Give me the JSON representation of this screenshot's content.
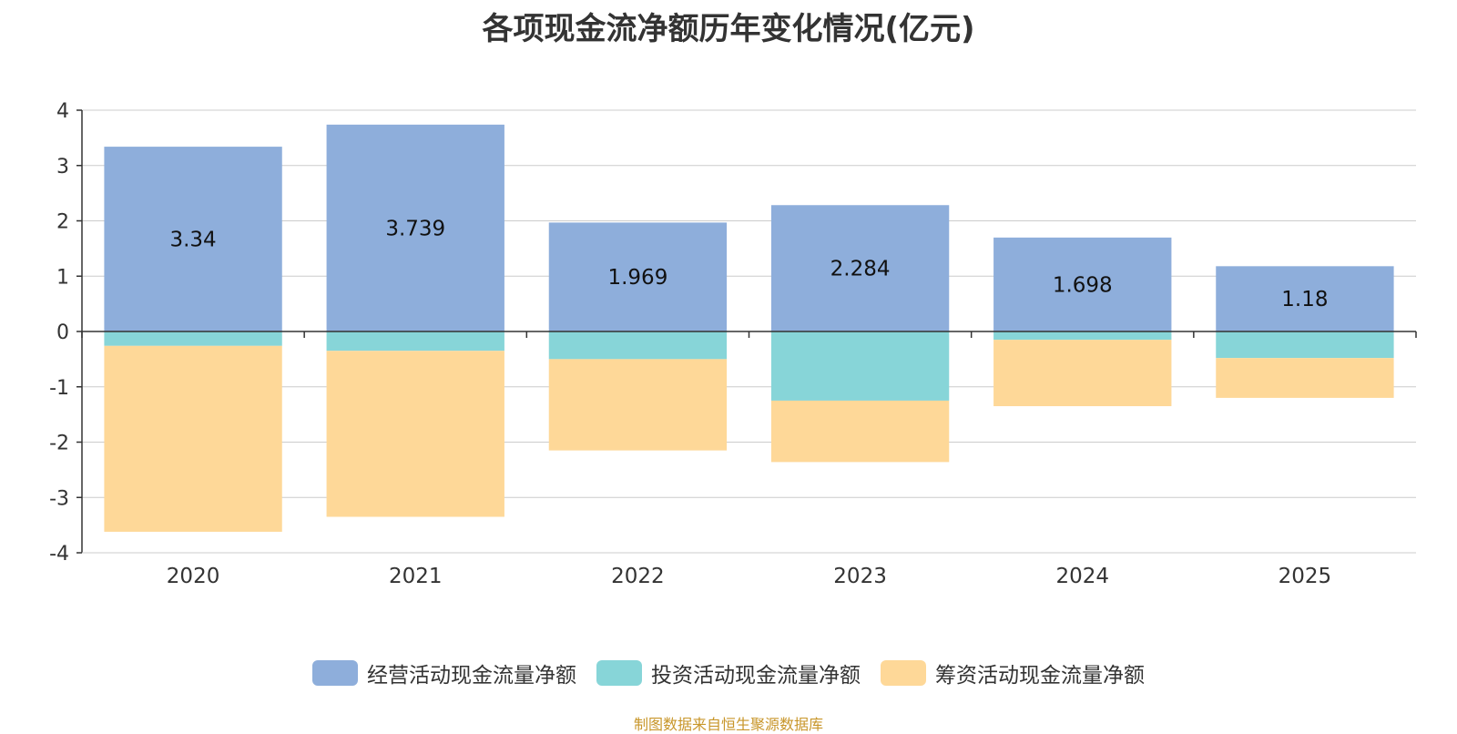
{
  "chart_data": {
    "type": "bar",
    "stacked": true,
    "title": "各项现金流净额历年变化情况(亿元)",
    "categories": [
      "2020",
      "2021",
      "2022",
      "2023",
      "2024",
      "2025"
    ],
    "series": [
      {
        "name": "经营活动现金流量净额",
        "color": "#8eaedb",
        "values": [
          3.34,
          3.739,
          1.969,
          2.284,
          1.698,
          1.18
        ],
        "show_labels": true
      },
      {
        "name": "投资活动现金流量净额",
        "color": "#87d5d8",
        "values": [
          -0.26,
          -0.35,
          -0.5,
          -1.25,
          -0.15,
          -0.48
        ],
        "show_labels": false
      },
      {
        "name": "筹资活动现金流量净额",
        "color": "#fed898",
        "values": [
          -3.36,
          -3.0,
          -1.65,
          -1.11,
          -1.2,
          -0.72
        ],
        "show_labels": false
      }
    ],
    "ylim": [
      -4,
      4
    ],
    "yticks": [
      4,
      3,
      2,
      1,
      0,
      -1,
      -2,
      -3,
      -4
    ],
    "grid": true,
    "legend_position": "bottom-center"
  },
  "source_note": "制图数据来自恒生聚源数据库"
}
